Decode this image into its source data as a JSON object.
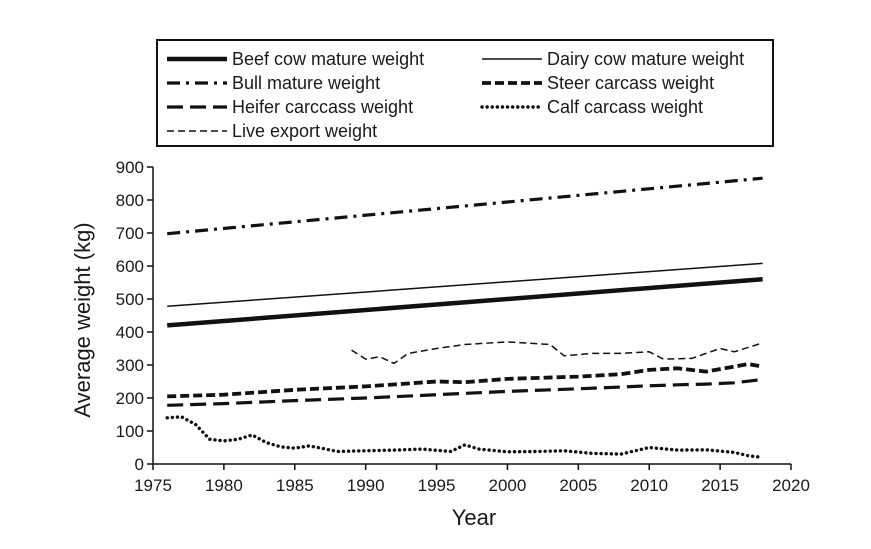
{
  "chart_data": {
    "type": "line",
    "title": "",
    "xlabel": "Year",
    "ylabel": "Average weight (kg)",
    "xlim": [
      1975,
      2020
    ],
    "ylim": [
      0,
      900
    ],
    "xticks": [
      1975,
      1980,
      1985,
      1990,
      1995,
      2000,
      2005,
      2010,
      2015,
      2020
    ],
    "yticks": [
      0,
      100,
      200,
      300,
      400,
      500,
      600,
      700,
      800,
      900
    ],
    "grid": false,
    "legend_position": "top",
    "series": [
      {
        "name": "Beef cow mature weight",
        "style": "thick-solid",
        "x": [
          1976,
          2018
        ],
        "y": [
          420,
          560
        ]
      },
      {
        "name": "Dairy cow mature weight",
        "style": "thin-solid",
        "x": [
          1976,
          2018
        ],
        "y": [
          478,
          608
        ]
      },
      {
        "name": "Bull mature weight",
        "style": "dash-dot",
        "x": [
          1976,
          2018
        ],
        "y": [
          698,
          866
        ]
      },
      {
        "name": "Steer carcass weight",
        "style": "thick-dash",
        "x": [
          1976,
          1980,
          1985,
          1990,
          1995,
          1997,
          2000,
          2005,
          2008,
          2010,
          2012,
          2014,
          2016,
          2017,
          2018
        ],
        "y": [
          205,
          210,
          225,
          235,
          250,
          248,
          258,
          265,
          272,
          285,
          290,
          280,
          295,
          303,
          295
        ]
      },
      {
        "name": "Heifer carccass weight",
        "style": "long-dash",
        "x": [
          1976,
          1980,
          1985,
          1990,
          1995,
          2000,
          2005,
          2010,
          2012,
          2014,
          2016,
          2018
        ],
        "y": [
          178,
          183,
          192,
          200,
          210,
          220,
          228,
          237,
          240,
          242,
          246,
          256
        ]
      },
      {
        "name": "Calf carcass weight",
        "style": "dotted",
        "x": [
          1976,
          1977,
          1978,
          1979,
          1980,
          1981,
          1982,
          1983,
          1984,
          1985,
          1986,
          1987,
          1988,
          1990,
          1992,
          1994,
          1996,
          1997,
          1998,
          2000,
          2002,
          2004,
          2006,
          2008,
          2010,
          2012,
          2014,
          2016,
          2017,
          2018
        ],
        "y": [
          140,
          143,
          120,
          75,
          70,
          75,
          88,
          65,
          52,
          48,
          55,
          47,
          38,
          40,
          42,
          45,
          38,
          58,
          45,
          37,
          38,
          40,
          32,
          30,
          50,
          42,
          43,
          35,
          25,
          20
        ]
      },
      {
        "name": "Live export weight",
        "style": "thin-dash",
        "x": [
          1989,
          1990,
          1991,
          1992,
          1993,
          1995,
          1997,
          2000,
          2003,
          2004,
          2006,
          2008,
          2010,
          2011,
          2013,
          2015,
          2016,
          2018
        ],
        "y": [
          345,
          318,
          325,
          305,
          335,
          350,
          362,
          370,
          362,
          328,
          335,
          335,
          340,
          318,
          320,
          350,
          340,
          367
        ]
      }
    ]
  }
}
